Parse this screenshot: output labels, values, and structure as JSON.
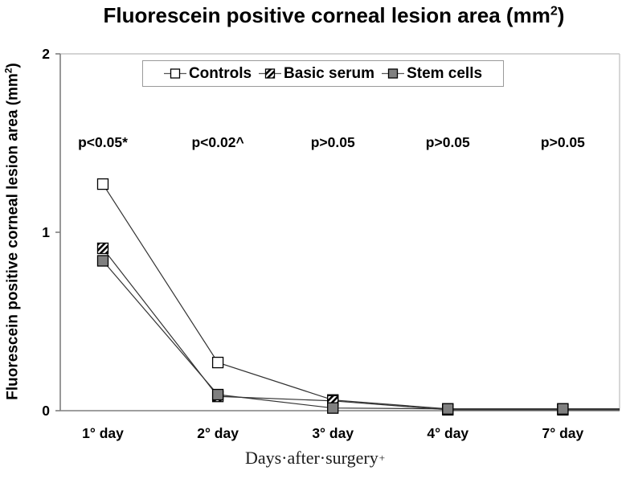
{
  "header": {
    "title_pre": "Fluorescein positive corneal lesion area (mm",
    "title_sup": "2",
    "title_post": ")"
  },
  "y_axis_label": {
    "pre": "Fluorescein positive corneal lesion area (mm",
    "sup": "2",
    "post": ")"
  },
  "x_axis_label": {
    "text": "Days·after·surgery",
    "mark": "+"
  },
  "chart_data": {
    "type": "line",
    "title": "Fluorescein positive corneal lesion area (mm²)",
    "ylabel": "Fluorescein positive corneal lesion area (mm²)",
    "xlabel": "Days after surgery",
    "categories": [
      "1° day",
      "2° day",
      "3° day",
      "4° day",
      "7° day"
    ],
    "series": [
      {
        "name": "Controls",
        "marker": "open-square",
        "values": [
          1.27,
          0.27,
          0.06,
          0.01,
          0.01
        ]
      },
      {
        "name": "Basic serum",
        "marker": "hatched-square",
        "values": [
          0.91,
          0.08,
          0.055,
          0.005,
          0.005
        ]
      },
      {
        "name": "Stem cells",
        "marker": "gray-square",
        "values": [
          0.84,
          0.09,
          0.015,
          0.01,
          0.01
        ]
      }
    ],
    "p_values": [
      "p<0.05*",
      "p<0.02^",
      "p>0.05",
      "p>0.05",
      "p>0.05"
    ],
    "y_ticks": [
      0,
      1,
      2
    ],
    "ylim": [
      0,
      2
    ],
    "grid": false,
    "legend_position": "top-center",
    "line_extends_to_right_edge": true,
    "colors": {
      "series_line": "#333333",
      "marker_stroke": "#000000",
      "controls_fill": "#ffffff",
      "stem_cells_fill": "#808080",
      "hatch_fg": "#000000",
      "hatch_bg": "#ffffff",
      "axis": "#7f7f7f",
      "plot_border": "#c6c6c6",
      "background": "#ffffff"
    }
  }
}
